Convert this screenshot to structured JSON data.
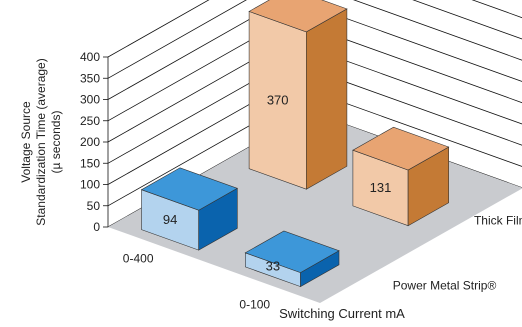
{
  "chart_data": {
    "type": "bar",
    "style": "3d-grouped",
    "title": "",
    "xlabel": "Switching Current mA",
    "ylabel_lines": [
      "Voltage Source",
      "Standardization Time (average)",
      "(µ seconds)"
    ],
    "ylim": [
      0,
      400
    ],
    "yticks": [
      "0",
      "50",
      "100",
      "150",
      "200",
      "250",
      "300",
      "350",
      "400"
    ],
    "categories": [
      "0-400",
      "0-100"
    ],
    "series": [
      {
        "name": "Power Metal Strip®",
        "values": [
          94,
          33
        ],
        "value_labels": [
          "94",
          "33"
        ]
      },
      {
        "name": "Thick Film",
        "values": [
          370,
          131
        ],
        "value_labels": [
          "370",
          "131"
        ]
      }
    ],
    "grid": true,
    "colors": {
      "pms_front": "#b3d3ee",
      "pms_top": "#3d97d9",
      "pms_side": "#0a63ad",
      "tf_front": "#f2c9a8",
      "tf_top": "#e8a472",
      "tf_side": "#c47a35",
      "floor": "#c9cbcf",
      "grid": "#111111"
    }
  }
}
